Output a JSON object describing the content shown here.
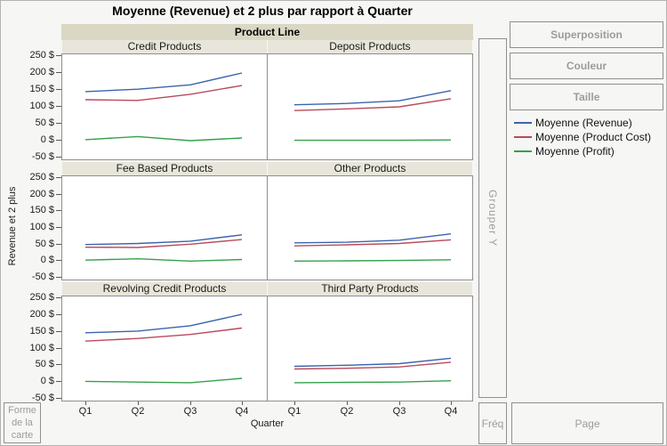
{
  "title_bar": "Moyenne (Revenue) et 2 plus par rapport à Quarter",
  "drop_zones": {
    "superposition": "Superposition",
    "couleur": "Couleur",
    "taille": "Taille",
    "grouper_y": "Grouper Y",
    "freq": "Fréq",
    "page": "Page",
    "forme": "Forme de la carte"
  },
  "legend": {
    "items": [
      {
        "label": "Moyenne (Revenue)",
        "color": "#3b64ac"
      },
      {
        "label": "Moyenne (Product Cost)",
        "color": "#b94a5c"
      },
      {
        "label": "Moyenne (Profit)",
        "color": "#35a14b"
      }
    ]
  },
  "colors": {
    "revenue_line": "#3b64ac",
    "product_cost_line": "#b94a5c",
    "profit_line": "#35a14b",
    "facet_band": "#dad7c4",
    "panel_header_band": "#e8e6da",
    "plot_border": "#8f8f8f",
    "background": "#f6f6f4"
  },
  "chart_data": {
    "type": "line",
    "title": "Moyenne (Revenue) et 2 plus par rapport à Quarter",
    "facet_variable": "Product Line",
    "xlabel": "Quarter",
    "ylabel": "Revenue et 2 plus",
    "x": [
      "Q1",
      "Q2",
      "Q3",
      "Q4"
    ],
    "ylim": [
      -50,
      250
    ],
    "ytick_labels": [
      "250 $",
      "200 $",
      "150 $",
      "100 $",
      "50 $",
      "0 $",
      "-50 $"
    ],
    "grid": false,
    "legend_position": "right",
    "series_names": [
      "Moyenne (Revenue)",
      "Moyenne (Product Cost)",
      "Moyenne (Profit)"
    ],
    "panels": [
      {
        "name": "Credit Products",
        "series": [
          [
            145,
            152,
            165,
            200
          ],
          [
            121,
            119,
            137,
            163
          ],
          [
            3,
            12,
            0,
            8
          ]
        ]
      },
      {
        "name": "Deposit Products",
        "series": [
          [
            106,
            110,
            118,
            148
          ],
          [
            89,
            94,
            100,
            124
          ],
          [
            1,
            1,
            1,
            2
          ]
        ]
      },
      {
        "name": "Fee Based Products",
        "series": [
          [
            50,
            53,
            60,
            79
          ],
          [
            42,
            41,
            51,
            65
          ],
          [
            3,
            7,
            0,
            5
          ]
        ]
      },
      {
        "name": "Other Products",
        "series": [
          [
            55,
            57,
            63,
            82
          ],
          [
            46,
            49,
            53,
            64
          ],
          [
            0,
            1,
            2,
            4
          ]
        ]
      },
      {
        "name": "Revolving Credit Products",
        "series": [
          [
            147,
            152,
            168,
            202
          ],
          [
            122,
            130,
            142,
            161
          ],
          [
            2,
            0,
            -2,
            11
          ]
        ]
      },
      {
        "name": "Third Party Products",
        "series": [
          [
            47,
            50,
            55,
            71
          ],
          [
            39,
            41,
            45,
            59
          ],
          [
            -2,
            -1,
            0,
            4
          ]
        ]
      }
    ]
  }
}
